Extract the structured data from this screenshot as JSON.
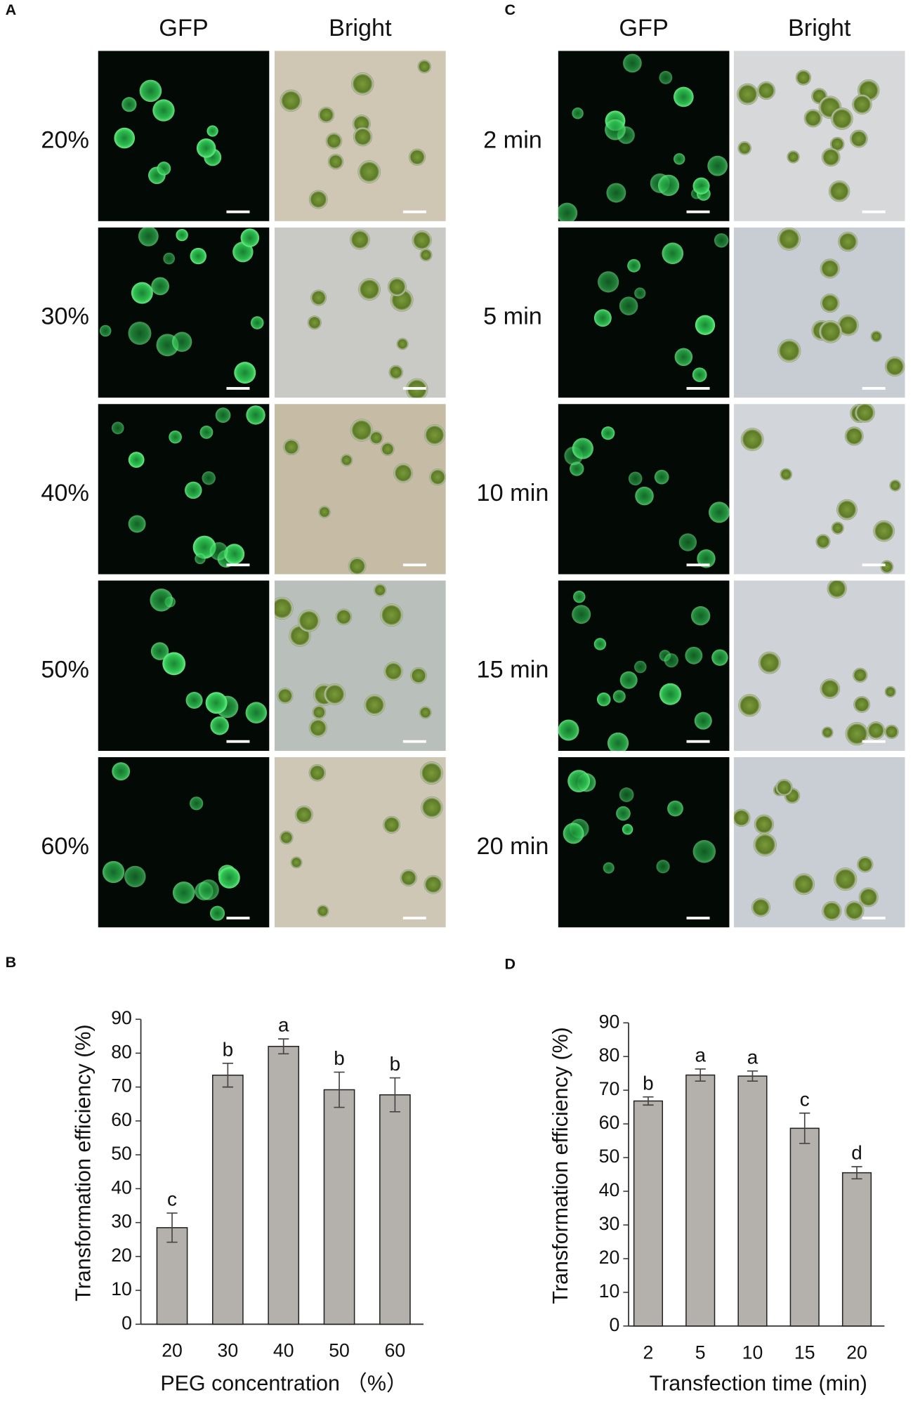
{
  "panel_a": {
    "label": "A",
    "columns": [
      "GFP",
      "Bright"
    ],
    "rows": [
      "20%",
      "30%",
      "40%",
      "50%",
      "60%"
    ]
  },
  "panel_c": {
    "label": "C",
    "columns": [
      "GFP",
      "Bright"
    ],
    "rows": [
      "2 min",
      "5 min",
      "10 min",
      "15 min",
      "20 min"
    ]
  },
  "chart_data": [
    {
      "type": "bar",
      "label": "B",
      "xlabel": "PEG concentration （%）",
      "ylabel": "Transformation efficiency (%)",
      "categories": [
        "20",
        "30",
        "40",
        "50",
        "60"
      ],
      "values": [
        28.5,
        73.5,
        82,
        69.2,
        67.7
      ],
      "errors": [
        4.3,
        3.5,
        2.2,
        5.2,
        5
      ],
      "letters": [
        "c",
        "b",
        "a",
        "b",
        "b"
      ],
      "color": "#b4b1ac",
      "ylim": [
        0,
        90
      ],
      "yticks": [
        0,
        10,
        20,
        30,
        40,
        50,
        60,
        70,
        80,
        90
      ]
    },
    {
      "type": "bar",
      "label": "D",
      "xlabel": "Transfection time (min)",
      "ylabel": "Transformation efficiency (%)",
      "categories": [
        "2",
        "5",
        "10",
        "15",
        "20"
      ],
      "values": [
        66.8,
        74.5,
        74.2,
        58.7,
        45.5
      ],
      "errors": [
        1.2,
        1.8,
        1.5,
        4.5,
        1.8
      ],
      "letters": [
        "b",
        "a",
        "a",
        "c",
        "d"
      ],
      "color": "#b4b1ac",
      "ylim": [
        0,
        90
      ],
      "yticks": [
        0,
        10,
        20,
        30,
        40,
        50,
        60,
        70,
        80,
        90
      ]
    }
  ]
}
